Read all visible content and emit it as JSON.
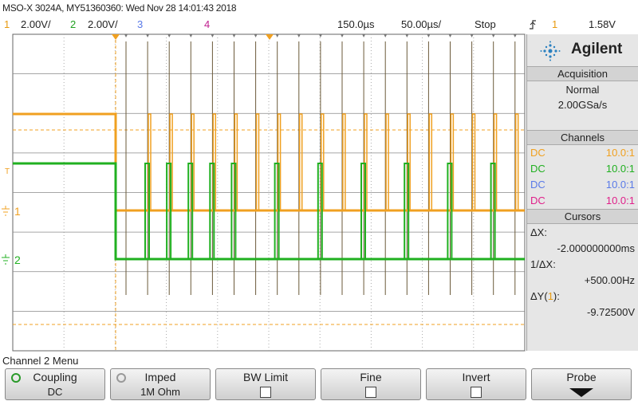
{
  "header": {
    "title": "MSO-X 3024A, MY51360360: Wed Nov 28 14:01:43 2018"
  },
  "status_bar": {
    "ch1": "1",
    "ch1_scale": "2.00V/",
    "ch2": "2",
    "ch2_scale": "2.00V/",
    "ch3": "3",
    "ch4": "4",
    "time_delay": "150.0µs",
    "time_scale": "50.00µs/",
    "run_state": "Stop",
    "trigger_source": "1",
    "trigger_level": "1.58V"
  },
  "screen": {
    "ch1_marker": "1",
    "ch2_marker": "2",
    "trigger_marker": "T"
  },
  "side_panel": {
    "brand": "Agilent",
    "acquisition": {
      "title": "Acquisition",
      "mode": "Normal",
      "rate": "2.00GSa/s"
    },
    "channels": {
      "title": "Channels",
      "rows": [
        {
          "coupling": "DC",
          "probe": "10.0:1",
          "color": "#f0a020"
        },
        {
          "coupling": "DC",
          "probe": "10.0:1",
          "color": "#20b020"
        },
        {
          "coupling": "DC",
          "probe": "10.0:1",
          "color": "#5a7ae8"
        },
        {
          "coupling": "DC",
          "probe": "10.0:1",
          "color": "#e0208a"
        }
      ]
    },
    "cursors": {
      "title": "Cursors",
      "dx_label": "ΔX:",
      "dx": "-2.000000000ms",
      "inv_label": "1/ΔX:",
      "inv": "+500.00Hz",
      "dy_label_a": "ΔY(",
      "dy_source": "1",
      "dy_label_b": "):",
      "dy": "-9.72500V"
    }
  },
  "menu": {
    "title": "Channel 2 Menu",
    "softkeys": [
      {
        "label": "Coupling",
        "value": "DC"
      },
      {
        "label": "Imped",
        "value": "1M Ohm"
      },
      {
        "label": "BW Limit"
      },
      {
        "label": "Fine"
      },
      {
        "label": "Invert"
      },
      {
        "label": "Probe"
      }
    ]
  }
}
